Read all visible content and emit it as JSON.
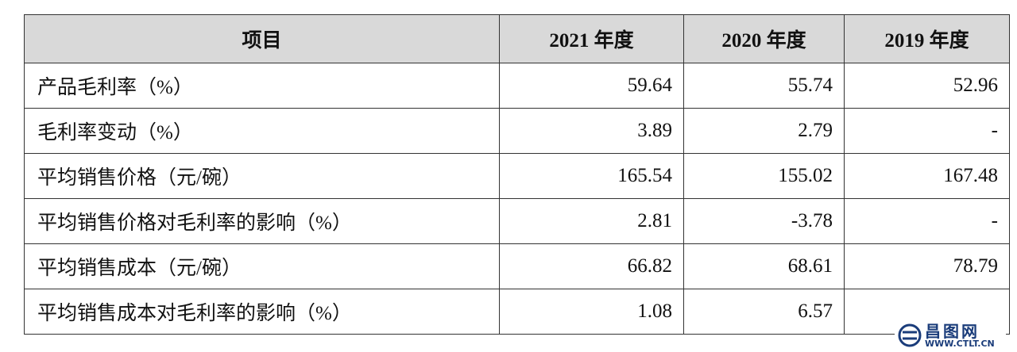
{
  "table": {
    "columns": [
      "项目",
      "2021 年度",
      "2020 年度",
      "2019 年度"
    ],
    "rows": [
      [
        "产品毛利率（%）",
        "59.64",
        "55.74",
        "52.96"
      ],
      [
        "毛利率变动（%）",
        "3.89",
        "2.79",
        "-"
      ],
      [
        "平均销售价格（元/碗）",
        "165.54",
        "155.02",
        "167.48"
      ],
      [
        "平均销售价格对毛利率的影响（%）",
        "2.81",
        "-3.78",
        "-"
      ],
      [
        "平均销售成本（元/碗）",
        "66.82",
        "68.61",
        "78.79"
      ],
      [
        "平均销售成本对毛利率的影响（%）",
        "1.08",
        "6.57",
        ""
      ]
    ]
  },
  "watermark": {
    "name": "昌图网",
    "url": "WWW.CTLT.CN"
  }
}
